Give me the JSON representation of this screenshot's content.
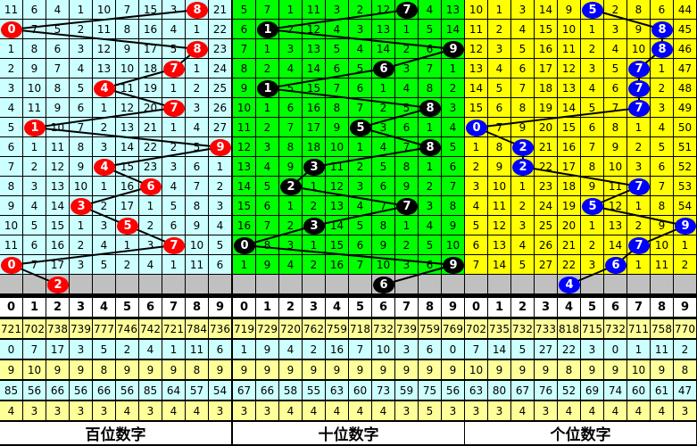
{
  "chart_data": {
    "type": "table",
    "header_digits": [
      "0",
      "1",
      "2",
      "3",
      "4",
      "5",
      "6",
      "7",
      "8",
      "9"
    ],
    "panels": [
      {
        "title": "百位数字",
        "bg": "#ccffff",
        "ball_color": "#ff0000",
        "rows": [
          [
            11,
            6,
            4,
            1,
            10,
            7,
            15,
            3,
            8,
            21
          ],
          [
            0,
            7,
            5,
            2,
            11,
            8,
            16,
            4,
            1,
            22
          ],
          [
            1,
            8,
            6,
            3,
            12,
            9,
            17,
            5,
            8,
            23
          ],
          [
            2,
            9,
            7,
            4,
            13,
            10,
            18,
            7,
            1,
            24
          ],
          [
            3,
            10,
            8,
            5,
            4,
            11,
            19,
            1,
            2,
            25
          ],
          [
            4,
            11,
            9,
            6,
            1,
            12,
            20,
            7,
            3,
            26
          ],
          [
            5,
            1,
            10,
            7,
            2,
            13,
            21,
            1,
            4,
            27
          ],
          [
            6,
            1,
            11,
            8,
            3,
            14,
            22,
            2,
            5,
            9
          ],
          [
            7,
            2,
            12,
            9,
            4,
            15,
            23,
            3,
            6,
            1
          ],
          [
            8,
            3,
            13,
            10,
            1,
            16,
            6,
            4,
            7,
            2
          ],
          [
            9,
            4,
            14,
            3,
            2,
            17,
            1,
            5,
            8,
            3
          ],
          [
            10,
            5,
            15,
            1,
            3,
            5,
            2,
            6,
            9,
            4
          ],
          [
            11,
            6,
            16,
            2,
            4,
            1,
            3,
            7,
            10,
            5
          ],
          [
            0,
            7,
            17,
            3,
            5,
            2,
            4,
            1,
            11,
            6
          ]
        ],
        "draws": [
          8,
          0,
          8,
          7,
          4,
          7,
          1,
          9,
          4,
          6,
          3,
          5,
          7,
          0
        ],
        "next": 2,
        "stats": [
          [
            721,
            702,
            738,
            739,
            777,
            746,
            742,
            721,
            784,
            736
          ],
          [
            0,
            7,
            17,
            3,
            5,
            2,
            4,
            1,
            11,
            6
          ],
          [
            9,
            10,
            9,
            9,
            8,
            9,
            9,
            9,
            8,
            9
          ],
          [
            85,
            56,
            66,
            56,
            66,
            56,
            85,
            64,
            57,
            54
          ],
          [
            4,
            3,
            3,
            3,
            3,
            4,
            3,
            4,
            4,
            3
          ]
        ]
      },
      {
        "title": "十位数字",
        "bg": "#00ff00",
        "ball_color": "#000000",
        "rows": [
          [
            5,
            7,
            1,
            11,
            3,
            2,
            12,
            7,
            4,
            13
          ],
          [
            6,
            1,
            2,
            12,
            4,
            3,
            13,
            1,
            5,
            14
          ],
          [
            7,
            1,
            3,
            13,
            5,
            4,
            14,
            2,
            6,
            9
          ],
          [
            8,
            2,
            4,
            14,
            6,
            5,
            6,
            3,
            7,
            1
          ],
          [
            9,
            1,
            5,
            15,
            7,
            6,
            1,
            4,
            8,
            2
          ],
          [
            10,
            1,
            6,
            16,
            8,
            7,
            2,
            5,
            8,
            3
          ],
          [
            11,
            2,
            7,
            17,
            9,
            5,
            3,
            6,
            1,
            4
          ],
          [
            12,
            3,
            8,
            18,
            10,
            1,
            4,
            7,
            8,
            5
          ],
          [
            13,
            4,
            9,
            3,
            11,
            2,
            5,
            8,
            1,
            6
          ],
          [
            14,
            5,
            2,
            1,
            12,
            3,
            6,
            9,
            2,
            7
          ],
          [
            15,
            6,
            1,
            2,
            13,
            4,
            7,
            7,
            3,
            8
          ],
          [
            16,
            7,
            2,
            3,
            14,
            5,
            8,
            1,
            4,
            9
          ],
          [
            0,
            8,
            3,
            1,
            15,
            6,
            9,
            2,
            5,
            10
          ],
          [
            1,
            9,
            4,
            2,
            16,
            7,
            10,
            3,
            6,
            9
          ]
        ],
        "draws": [
          7,
          1,
          9,
          6,
          1,
          8,
          5,
          8,
          3,
          2,
          7,
          3,
          0,
          9
        ],
        "next": 6,
        "stats": [
          [
            719,
            729,
            720,
            762,
            759,
            718,
            732,
            739,
            759,
            769
          ],
          [
            1,
            9,
            4,
            2,
            16,
            7,
            10,
            3,
            6,
            0
          ],
          [
            9,
            9,
            9,
            9,
            9,
            9,
            9,
            9,
            9,
            9
          ],
          [
            67,
            66,
            58,
            55,
            63,
            60,
            73,
            59,
            75,
            56
          ],
          [
            3,
            3,
            4,
            4,
            4,
            4,
            4,
            3,
            5,
            3
          ]
        ]
      },
      {
        "title": "个位数字",
        "bg": "#ffff00",
        "ball_color": "#0000ff",
        "rows": [
          [
            10,
            1,
            3,
            14,
            9,
            5,
            2,
            8,
            6,
            44
          ],
          [
            11,
            2,
            4,
            15,
            10,
            1,
            3,
            9,
            8,
            45
          ],
          [
            12,
            3,
            5,
            16,
            11,
            2,
            4,
            10,
            8,
            46
          ],
          [
            13,
            4,
            6,
            17,
            12,
            3,
            5,
            7,
            1,
            47
          ],
          [
            14,
            5,
            7,
            18,
            13,
            4,
            6,
            7,
            2,
            48
          ],
          [
            15,
            6,
            8,
            19,
            14,
            5,
            7,
            7,
            3,
            49
          ],
          [
            0,
            7,
            9,
            20,
            15,
            6,
            8,
            1,
            4,
            50
          ],
          [
            1,
            8,
            2,
            21,
            16,
            7,
            9,
            2,
            5,
            51
          ],
          [
            2,
            9,
            2,
            22,
            17,
            8,
            10,
            3,
            6,
            52
          ],
          [
            3,
            10,
            1,
            23,
            18,
            9,
            11,
            7,
            7,
            53
          ],
          [
            4,
            11,
            2,
            24,
            19,
            5,
            12,
            1,
            8,
            54
          ],
          [
            5,
            12,
            3,
            25,
            20,
            1,
            13,
            2,
            9,
            9
          ],
          [
            6,
            13,
            4,
            26,
            21,
            2,
            14,
            7,
            10,
            1
          ],
          [
            7,
            14,
            5,
            27,
            22,
            3,
            6,
            1,
            11,
            2
          ]
        ],
        "draws": [
          5,
          8,
          8,
          7,
          7,
          7,
          0,
          2,
          2,
          7,
          5,
          9,
          7,
          6
        ],
        "next": 4,
        "stats": [
          [
            702,
            735,
            732,
            733,
            818,
            715,
            732,
            711,
            758,
            770
          ],
          [
            7,
            14,
            5,
            27,
            22,
            3,
            0,
            1,
            11,
            2
          ],
          [
            10,
            9,
            9,
            9,
            8,
            9,
            9,
            10,
            9,
            8
          ],
          [
            63,
            80,
            67,
            76,
            52,
            69,
            74,
            60,
            61,
            47
          ],
          [
            3,
            3,
            4,
            3,
            4,
            4,
            4,
            4,
            4,
            3
          ]
        ]
      }
    ],
    "stats_colors": [
      "#ffff99",
      "#ccffff",
      "#ffff99",
      "#ccffff",
      "#ffff99"
    ],
    "next_row_bg": "#c0c0c0"
  }
}
